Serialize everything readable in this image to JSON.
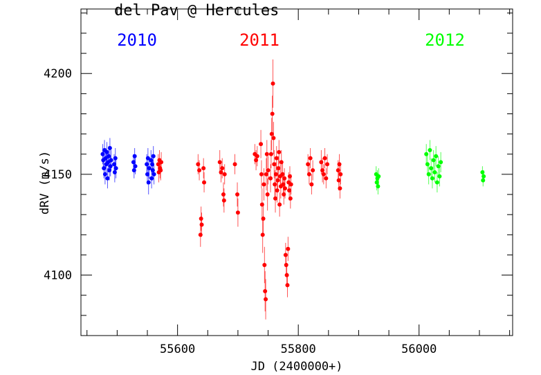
{
  "chart_data": {
    "type": "scatter",
    "title": "del Pav @ Hercules",
    "xlabel": "JD (2400000+)",
    "ylabel": "dRV (m/s)",
    "xlim": [
      55440,
      56155
    ],
    "ylim": [
      4070,
      4232
    ],
    "x_ticks": [
      55600,
      55800,
      56000
    ],
    "y_ticks": [
      4100,
      4150,
      4200
    ],
    "error_bars": true,
    "legend": "year labels across top",
    "series": [
      {
        "name": "2010",
        "color": "#0000ff",
        "points": [
          [
            55476,
            4160,
            5
          ],
          [
            55477,
            4157,
            5
          ],
          [
            55478,
            4153,
            5
          ],
          [
            55479,
            4162,
            5
          ],
          [
            55480,
            4150,
            5
          ],
          [
            55481,
            4158,
            5
          ],
          [
            55482,
            4155,
            5
          ],
          [
            55483,
            4161,
            5
          ],
          [
            55484,
            4148,
            5
          ],
          [
            55485,
            4156,
            5
          ],
          [
            55486,
            4159,
            5
          ],
          [
            55487,
            4152,
            5
          ],
          [
            55488,
            4163,
            5
          ],
          [
            55489,
            4154,
            5
          ],
          [
            55490,
            4157,
            5
          ],
          [
            55495,
            4155,
            5
          ],
          [
            55496,
            4151,
            5
          ],
          [
            55497,
            4158,
            5
          ],
          [
            55498,
            4153,
            5
          ],
          [
            55527,
            4156,
            4
          ],
          [
            55528,
            4152,
            4
          ],
          [
            55529,
            4159,
            4
          ],
          [
            55530,
            4154,
            4
          ],
          [
            55549,
            4155,
            5
          ],
          [
            55550,
            4150,
            5
          ],
          [
            55551,
            4158,
            5
          ],
          [
            55552,
            4146,
            6
          ],
          [
            55553,
            4153,
            5
          ],
          [
            55556,
            4157,
            5
          ],
          [
            55557,
            4148,
            5
          ],
          [
            55558,
            4155,
            5
          ],
          [
            55559,
            4152,
            5
          ],
          [
            55560,
            4159,
            5
          ],
          [
            55561,
            4150,
            5
          ]
        ]
      },
      {
        "name": "2011",
        "color": "#ff0000",
        "points": [
          [
            55568,
            4155,
            5
          ],
          [
            55569,
            4151,
            5
          ],
          [
            55570,
            4157,
            5
          ],
          [
            55571,
            4153,
            5
          ],
          [
            55572,
            4152,
            5
          ],
          [
            55573,
            4156,
            5
          ],
          [
            55634,
            4155,
            5
          ],
          [
            55636,
            4152,
            5
          ],
          [
            55638,
            4120,
            6
          ],
          [
            55639,
            4128,
            6
          ],
          [
            55640,
            4125,
            6
          ],
          [
            55643,
            4153,
            5
          ],
          [
            55644,
            4146,
            5
          ],
          [
            55670,
            4156,
            6
          ],
          [
            55672,
            4151,
            5
          ],
          [
            55674,
            4153,
            5
          ],
          [
            55676,
            4140,
            6
          ],
          [
            55677,
            4137,
            6
          ],
          [
            55678,
            4150,
            5
          ],
          [
            55695,
            4155,
            5
          ],
          [
            55699,
            4140,
            6
          ],
          [
            55700,
            4131,
            7
          ],
          [
            55728,
            4160,
            5
          ],
          [
            55730,
            4157,
            5
          ],
          [
            55732,
            4159,
            5
          ],
          [
            55738,
            4165,
            7
          ],
          [
            55739,
            4150,
            7
          ],
          [
            55740,
            4135,
            8
          ],
          [
            55741,
            4120,
            9
          ],
          [
            55742,
            4128,
            8
          ],
          [
            55743,
            4145,
            8
          ],
          [
            55744,
            4105,
            9
          ],
          [
            55745,
            4092,
            10
          ],
          [
            55746,
            4088,
            10
          ],
          [
            55747,
            4150,
            8
          ],
          [
            55748,
            4160,
            7
          ],
          [
            55749,
            4140,
            8
          ],
          [
            55750,
            4152,
            7
          ],
          [
            55754,
            4148,
            7
          ],
          [
            55755,
            4160,
            7
          ],
          [
            55756,
            4170,
            8
          ],
          [
            55757,
            4180,
            9
          ],
          [
            55758,
            4195,
            12
          ],
          [
            55759,
            4168,
            8
          ],
          [
            55760,
            4155,
            7
          ],
          [
            55761,
            4145,
            7
          ],
          [
            55762,
            4138,
            7
          ],
          [
            55763,
            4150,
            6
          ],
          [
            55764,
            4158,
            6
          ],
          [
            55765,
            4142,
            6
          ],
          [
            55766,
            4147,
            6
          ],
          [
            55767,
            4153,
            6
          ],
          [
            55768,
            4161,
            6
          ],
          [
            55769,
            4135,
            6
          ],
          [
            55770,
            4149,
            6
          ],
          [
            55771,
            4144,
            6
          ],
          [
            55772,
            4156,
            6
          ],
          [
            55774,
            4150,
            6
          ],
          [
            55775,
            4145,
            6
          ],
          [
            55776,
            4140,
            5
          ],
          [
            55777,
            4148,
            5
          ],
          [
            55778,
            4143,
            5
          ],
          [
            55779,
            4110,
            6
          ],
          [
            55780,
            4105,
            6
          ],
          [
            55781,
            4100,
            6
          ],
          [
            55782,
            4095,
            6
          ],
          [
            55783,
            4113,
            6
          ],
          [
            55784,
            4146,
            5
          ],
          [
            55785,
            4142,
            5
          ],
          [
            55786,
            4149,
            5
          ],
          [
            55787,
            4138,
            5
          ],
          [
            55788,
            4145,
            5
          ],
          [
            55816,
            4155,
            5
          ],
          [
            55818,
            4150,
            5
          ],
          [
            55820,
            4158,
            5
          ],
          [
            55822,
            4145,
            5
          ],
          [
            55824,
            4152,
            5
          ],
          [
            55838,
            4156,
            6
          ],
          [
            55840,
            4152,
            6
          ],
          [
            55842,
            4150,
            5
          ],
          [
            55844,
            4158,
            5
          ],
          [
            55846,
            4148,
            5
          ],
          [
            55848,
            4155,
            5
          ],
          [
            55866,
            4152,
            5
          ],
          [
            55867,
            4147,
            5
          ],
          [
            55868,
            4155,
            5
          ],
          [
            55869,
            4143,
            5
          ],
          [
            55870,
            4150,
            5
          ]
        ]
      },
      {
        "name": "2012",
        "color": "#00ff00",
        "points": [
          [
            55929,
            4150,
            4
          ],
          [
            55930,
            4146,
            4
          ],
          [
            55931,
            4148,
            4
          ],
          [
            55932,
            4144,
            4
          ],
          [
            55933,
            4149,
            4
          ],
          [
            56012,
            4160,
            5
          ],
          [
            56014,
            4155,
            5
          ],
          [
            56016,
            4150,
            5
          ],
          [
            56018,
            4162,
            5
          ],
          [
            56020,
            4153,
            5
          ],
          [
            56022,
            4148,
            5
          ],
          [
            56024,
            4157,
            5
          ],
          [
            56026,
            4151,
            5
          ],
          [
            56028,
            4159,
            5
          ],
          [
            56030,
            4146,
            5
          ],
          [
            56032,
            4154,
            5
          ],
          [
            56034,
            4149,
            5
          ],
          [
            56036,
            4156,
            5
          ],
          [
            56105,
            4151,
            3
          ],
          [
            56106,
            4147,
            3
          ],
          [
            56107,
            4149,
            3
          ]
        ]
      }
    ]
  }
}
